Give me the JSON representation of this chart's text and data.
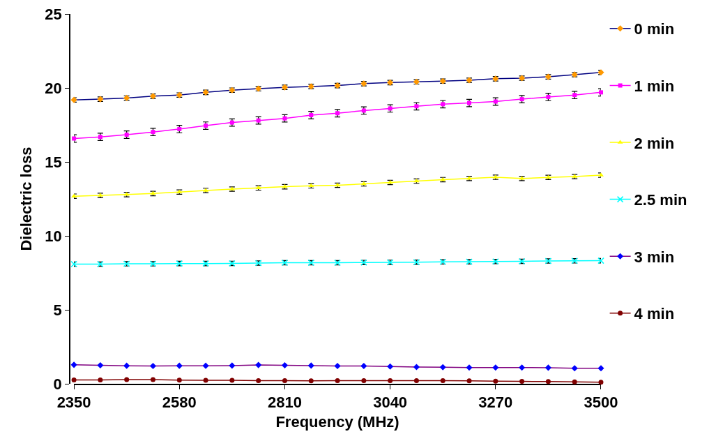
{
  "chart_data": {
    "type": "line",
    "xlabel": "Frequency (MHz)",
    "ylabel": "Dielectric loss",
    "x": [
      2350,
      2407.5,
      2465,
      2522.5,
      2580,
      2637.5,
      2695,
      2752.5,
      2810,
      2867.5,
      2925,
      2982.5,
      3040,
      3097.5,
      3155,
      3212.5,
      3270,
      3327.5,
      3385,
      3442.5,
      3500
    ],
    "xlim": [
      2350,
      3500
    ],
    "xticks": [
      2350,
      2580,
      2810,
      3040,
      3270,
      3500
    ],
    "ylim": [
      0,
      25
    ],
    "yticks": [
      0,
      5,
      10,
      15,
      20,
      25
    ],
    "grid": false,
    "legend": "right",
    "series": [
      {
        "name": "0 min",
        "color": "#000080",
        "colors": [
          "#ff9900",
          "#ff9900",
          "#ff9900",
          "#ff9900",
          "#ff9900",
          "#ff9900",
          "#ff9900",
          "#ff9900",
          "#ff9900",
          "#ff9900",
          "#ff9900",
          "#ff9900",
          "#ff9900",
          "#ff9900",
          "#ff9900",
          "#ff9900",
          "#ff9900",
          "#ff9900",
          "#ff9900",
          "#ff9900",
          "#ff9900"
        ],
        "marker": "diamond",
        "values": [
          19.19,
          19.24,
          19.32,
          19.44,
          19.52,
          19.7,
          19.85,
          19.95,
          20.04,
          20.1,
          20.16,
          20.29,
          20.36,
          20.41,
          20.46,
          20.52,
          20.62,
          20.66,
          20.75,
          20.9,
          21.05
        ],
        "errors": [
          0.15,
          0.15,
          0.15,
          0.15,
          0.15,
          0.15,
          0.15,
          0.15,
          0.15,
          0.15,
          0.15,
          0.15,
          0.15,
          0.15,
          0.15,
          0.15,
          0.15,
          0.15,
          0.15,
          0.15,
          0.15
        ]
      },
      {
        "name": "1 min",
        "color": "#ff00ff",
        "marker": "square",
        "values": [
          16.58,
          16.69,
          16.84,
          17.02,
          17.22,
          17.45,
          17.66,
          17.8,
          17.94,
          18.16,
          18.29,
          18.47,
          18.61,
          18.76,
          18.9,
          18.98,
          19.08,
          19.24,
          19.39,
          19.52,
          19.7
        ],
        "errors": [
          0.25,
          0.25,
          0.25,
          0.25,
          0.25,
          0.25,
          0.25,
          0.25,
          0.25,
          0.25,
          0.25,
          0.25,
          0.25,
          0.25,
          0.25,
          0.25,
          0.25,
          0.25,
          0.25,
          0.25,
          0.25
        ]
      },
      {
        "name": "2 min",
        "color": "#ffff00",
        "marker": "triangle",
        "values": [
          12.68,
          12.73,
          12.79,
          12.86,
          12.96,
          13.07,
          13.16,
          13.24,
          13.32,
          13.38,
          13.42,
          13.51,
          13.61,
          13.7,
          13.8,
          13.88,
          13.96,
          13.88,
          13.95,
          14.01,
          14.1
        ],
        "errors": [
          0.15,
          0.15,
          0.15,
          0.15,
          0.15,
          0.15,
          0.15,
          0.15,
          0.15,
          0.15,
          0.15,
          0.15,
          0.15,
          0.15,
          0.15,
          0.15,
          0.15,
          0.15,
          0.15,
          0.15,
          0.15
        ]
      },
      {
        "name": "2.5 min",
        "color": "#00ffff",
        "marker": "cross",
        "values": [
          8.09,
          8.09,
          8.11,
          8.11,
          8.13,
          8.13,
          8.14,
          8.16,
          8.18,
          8.18,
          8.18,
          8.2,
          8.21,
          8.22,
          8.24,
          8.25,
          8.27,
          8.28,
          8.3,
          8.31,
          8.32
        ],
        "errors": [
          0.15,
          0.15,
          0.15,
          0.15,
          0.15,
          0.15,
          0.15,
          0.15,
          0.15,
          0.15,
          0.15,
          0.15,
          0.15,
          0.15,
          0.15,
          0.15,
          0.15,
          0.15,
          0.15,
          0.15,
          0.15
        ]
      },
      {
        "name": "3 min",
        "color": "#800080",
        "colors": [
          "#0000ff",
          "#0000ff",
          "#0000ff",
          "#0000ff",
          "#0000ff",
          "#0000ff",
          "#0000ff",
          "#0000ff",
          "#0000ff",
          "#0000ff",
          "#0000ff",
          "#0000ff",
          "#0000ff",
          "#0000ff",
          "#0000ff",
          "#0000ff",
          "#0000ff",
          "#0000ff",
          "#0000ff",
          "#0000ff",
          "#0000ff"
        ],
        "marker": "diamond",
        "values": [
          1.28,
          1.25,
          1.22,
          1.2,
          1.22,
          1.22,
          1.23,
          1.27,
          1.25,
          1.23,
          1.2,
          1.2,
          1.17,
          1.13,
          1.12,
          1.1,
          1.1,
          1.1,
          1.09,
          1.05,
          1.05
        ]
      },
      {
        "name": "4 min",
        "color": "#800000",
        "marker": "circle",
        "values": [
          0.26,
          0.26,
          0.28,
          0.28,
          0.25,
          0.23,
          0.23,
          0.21,
          0.21,
          0.2,
          0.21,
          0.21,
          0.21,
          0.21,
          0.21,
          0.2,
          0.18,
          0.16,
          0.15,
          0.13,
          0.11
        ]
      }
    ]
  }
}
